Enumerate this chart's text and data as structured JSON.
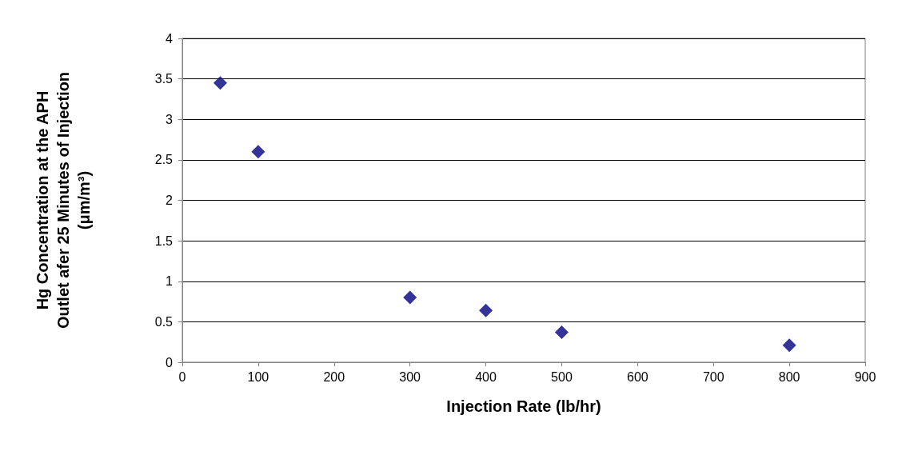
{
  "chart_data": {
    "type": "scatter",
    "xlabel": "Injection Rate (lb/hr)",
    "ylabel": "Hg Concentration at the APH\nOutlet afer 25 Minutes of Injection\n(μm/m³)",
    "x": [
      50,
      100,
      300,
      400,
      500,
      800
    ],
    "series": [
      {
        "color": "#000080",
        "values": [
          3.45,
          2.6,
          0.8,
          0.64,
          0.37,
          0.21
        ]
      }
    ],
    "xlim": [
      0,
      900
    ],
    "xticks": [
      0,
      100,
      200,
      300,
      400,
      500,
      600,
      700,
      800,
      900
    ],
    "ylim": [
      0,
      4
    ],
    "yticks": [
      0,
      0.5,
      1,
      1.5,
      2,
      2.5,
      3,
      3.5,
      4
    ],
    "grid": "y",
    "marker": "diamond"
  }
}
